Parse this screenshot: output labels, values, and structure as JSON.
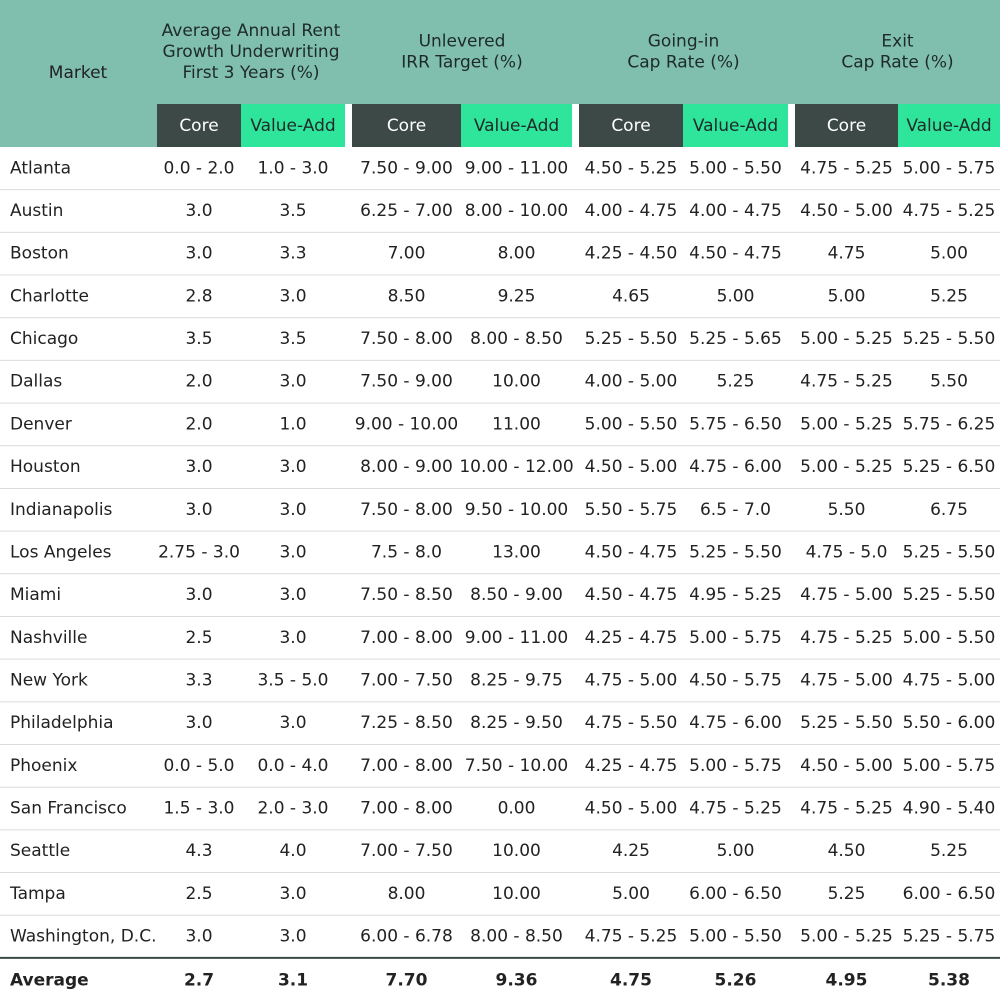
{
  "table": {
    "market_header": "Market",
    "groups": [
      {
        "label": [
          "Average Annual Rent",
          "Growth Underwriting",
          "First 3 Years (%)"
        ],
        "columns": [
          "Core",
          "Value-Add"
        ]
      },
      {
        "label": [
          "Unlevered",
          "IRR Target (%)"
        ],
        "columns": [
          "Core",
          "Value-Add"
        ]
      },
      {
        "label": [
          "Going-in",
          "Cap Rate (%)"
        ],
        "columns": [
          "Core",
          "Value-Add"
        ]
      },
      {
        "label": [
          "Exit",
          "Cap Rate (%)"
        ],
        "columns": [
          "Core",
          "Value-Add"
        ]
      }
    ],
    "rows": [
      [
        "Atlanta",
        "0.0 - 2.0",
        "1.0 - 3.0",
        "7.50 - 9.00",
        "9.00 - 11.00",
        "4.50 - 5.25",
        "5.00 - 5.50",
        "4.75 - 5.25",
        "5.00 - 5.75"
      ],
      [
        "Austin",
        "3.0",
        "3.5",
        "6.25 - 7.00",
        "8.00 - 10.00",
        "4.00 - 4.75",
        "4.00 - 4.75",
        "4.50 - 5.00",
        "4.75 - 5.25"
      ],
      [
        "Boston",
        "3.0",
        "3.3",
        "7.00",
        "8.00",
        "4.25 - 4.50",
        "4.50 - 4.75",
        "4.75",
        "5.00"
      ],
      [
        "Charlotte",
        "2.8",
        "3.0",
        "8.50",
        "9.25",
        "4.65",
        "5.00",
        "5.00",
        "5.25"
      ],
      [
        "Chicago",
        "3.5",
        "3.5",
        "7.50 - 8.00",
        "8.00 - 8.50",
        "5.25 - 5.50",
        "5.25 - 5.65",
        "5.00 - 5.25",
        "5.25 - 5.50"
      ],
      [
        "Dallas",
        "2.0",
        "3.0",
        "7.50 - 9.00",
        "10.00",
        "4.00 - 5.00",
        "5.25",
        "4.75 - 5.25",
        "5.50"
      ],
      [
        "Denver",
        "2.0",
        "1.0",
        "9.00 - 10.00",
        "11.00",
        "5.00 - 5.50",
        "5.75 - 6.50",
        "5.00 - 5.25",
        "5.75 - 6.25"
      ],
      [
        "Houston",
        "3.0",
        "3.0",
        "8.00 - 9.00",
        "10.00 - 12.00",
        "4.50 - 5.00",
        "4.75 - 6.00",
        "5.00 - 5.25",
        "5.25 - 6.50"
      ],
      [
        "Indianapolis",
        "3.0",
        "3.0",
        "7.50 - 8.00",
        "9.50 - 10.00",
        "5.50 - 5.75",
        "6.5 - 7.0",
        "5.50",
        "6.75"
      ],
      [
        "Los Angeles",
        "2.75 - 3.0",
        "3.0",
        "7.5 - 8.0",
        "13.00",
        "4.50 - 4.75",
        "5.25 - 5.50",
        "4.75 - 5.0",
        "5.25 - 5.50"
      ],
      [
        "Miami",
        "3.0",
        "3.0",
        "7.50 - 8.50",
        "8.50 - 9.00",
        "4.50 - 4.75",
        "4.95 - 5.25",
        "4.75 - 5.00",
        "5.25 - 5.50"
      ],
      [
        "Nashville",
        "2.5",
        "3.0",
        "7.00 - 8.00",
        "9.00 - 11.00",
        "4.25 - 4.75",
        "5.00 - 5.75",
        "4.75 - 5.25",
        "5.00 - 5.50"
      ],
      [
        "New York",
        "3.3",
        "3.5 - 5.0",
        "7.00 - 7.50",
        "8.25 - 9.75",
        "4.75 - 5.00",
        "4.50 - 5.75",
        "4.75 - 5.00",
        "4.75 - 5.00"
      ],
      [
        "Philadelphia",
        "3.0",
        "3.0",
        "7.25 - 8.50",
        "8.25 - 9.50",
        "4.75 - 5.50",
        "4.75 - 6.00",
        "5.25 - 5.50",
        "5.50 - 6.00"
      ],
      [
        "Phoenix",
        "0.0 - 5.0",
        "0.0 - 4.0",
        "7.00 - 8.00",
        "7.50 - 10.00",
        "4.25 - 4.75",
        "5.00 - 5.75",
        "4.50 - 5.00",
        "5.00 - 5.75"
      ],
      [
        "San Francisco",
        "1.5 - 3.0",
        "2.0 - 3.0",
        "7.00 - 8.00",
        "0.00",
        "4.50 - 5.00",
        "4.75 - 5.25",
        "4.75 - 5.25",
        "4.90 - 5.40"
      ],
      [
        "Seattle",
        "4.3",
        "4.0",
        "7.00 - 7.50",
        "10.00",
        "4.25",
        "5.00",
        "4.50",
        "5.25"
      ],
      [
        "Tampa",
        "2.5",
        "3.0",
        "8.00",
        "10.00",
        "5.00",
        "6.00 - 6.50",
        "5.25",
        "6.00 - 6.50"
      ],
      [
        "Washington, D.C.",
        "3.0",
        "3.0",
        "6.00 - 6.78",
        "8.00 - 8.50",
        "4.75 - 5.25",
        "5.00 - 5.50",
        "5.00 - 5.25",
        "5.25 - 5.75"
      ]
    ],
    "average": [
      "Average",
      "2.7",
      "3.1",
      "7.70",
      "9.36",
      "4.75",
      "5.26",
      "4.95",
      "5.38"
    ]
  }
}
